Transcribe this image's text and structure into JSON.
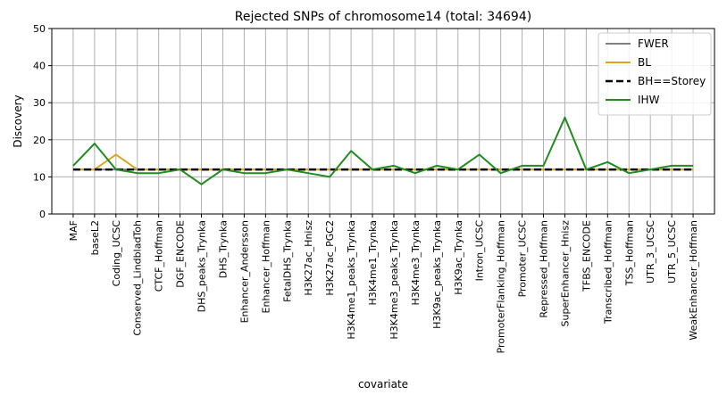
{
  "chart_data": {
    "type": "line",
    "title": "Rejected SNPs of chromosome14 (total: 34694)",
    "xlabel": "covariate",
    "ylabel": "Discovery",
    "ylim": [
      0,
      50
    ],
    "yticks": [
      0,
      10,
      20,
      30,
      40,
      50
    ],
    "grid": true,
    "legend_position": "top-right",
    "categories": [
      "MAF",
      "baseL2",
      "Coding_UCSC",
      "Conserved_LindbladToh",
      "CTCF_Hoffman",
      "DGF_ENCODE",
      "DHS_peaks_Trynka",
      "DHS_Trynka",
      "Enhancer_Andersson",
      "Enhancer_Hoffman",
      "FetalDHS_Trynka",
      "H3K27ac_Hnisz",
      "H3K27ac_PGC2",
      "H3K4me1_peaks_Trynka",
      "H3K4me1_Trynka",
      "H3K4me3_peaks_Trynka",
      "H3K4me3_Trynka",
      "H3K9ac_peaks_Trynka",
      "H3K9ac_Trynka",
      "Intron_UCSC",
      "PromoterFlanking_Hoffman",
      "Promoter_UCSC",
      "Repressed_Hoffman",
      "SuperEnhancer_Hnisz",
      "TFBS_ENCODE",
      "Transcribed_Hoffman",
      "TSS_Hoffman",
      "UTR_3_UCSC",
      "UTR_5_UCSC",
      "WeakEnhancer_Hoffman"
    ],
    "series": [
      {
        "name": "FWER",
        "color": "#808080",
        "dash": "solid",
        "values": [
          12,
          12,
          12,
          12,
          12,
          12,
          12,
          12,
          12,
          12,
          12,
          12,
          12,
          12,
          12,
          12,
          12,
          12,
          12,
          12,
          12,
          12,
          12,
          12,
          12,
          12,
          12,
          12,
          12,
          12
        ]
      },
      {
        "name": "BL",
        "color": "#DAA520",
        "dash": "solid",
        "values": [
          12,
          12,
          16,
          12,
          12,
          12,
          12,
          12,
          12,
          12,
          12,
          12,
          12,
          12,
          12,
          12,
          12,
          12,
          12,
          12,
          12,
          12,
          12,
          12,
          12,
          12,
          12,
          12,
          12,
          12
        ]
      },
      {
        "name": "BH==Storey",
        "color": "#000000",
        "dash": "dashed",
        "values": [
          12,
          12,
          12,
          12,
          12,
          12,
          12,
          12,
          12,
          12,
          12,
          12,
          12,
          12,
          12,
          12,
          12,
          12,
          12,
          12,
          12,
          12,
          12,
          12,
          12,
          12,
          12,
          12,
          12,
          12
        ]
      },
      {
        "name": "IHW",
        "color": "#228B22",
        "dash": "solid",
        "values": [
          13,
          19,
          12,
          11,
          11,
          12,
          8,
          12,
          11,
          11,
          12,
          11,
          10,
          17,
          12,
          13,
          11,
          13,
          12,
          16,
          11,
          13,
          13,
          26,
          12,
          14,
          11,
          12,
          13,
          13
        ]
      }
    ]
  }
}
